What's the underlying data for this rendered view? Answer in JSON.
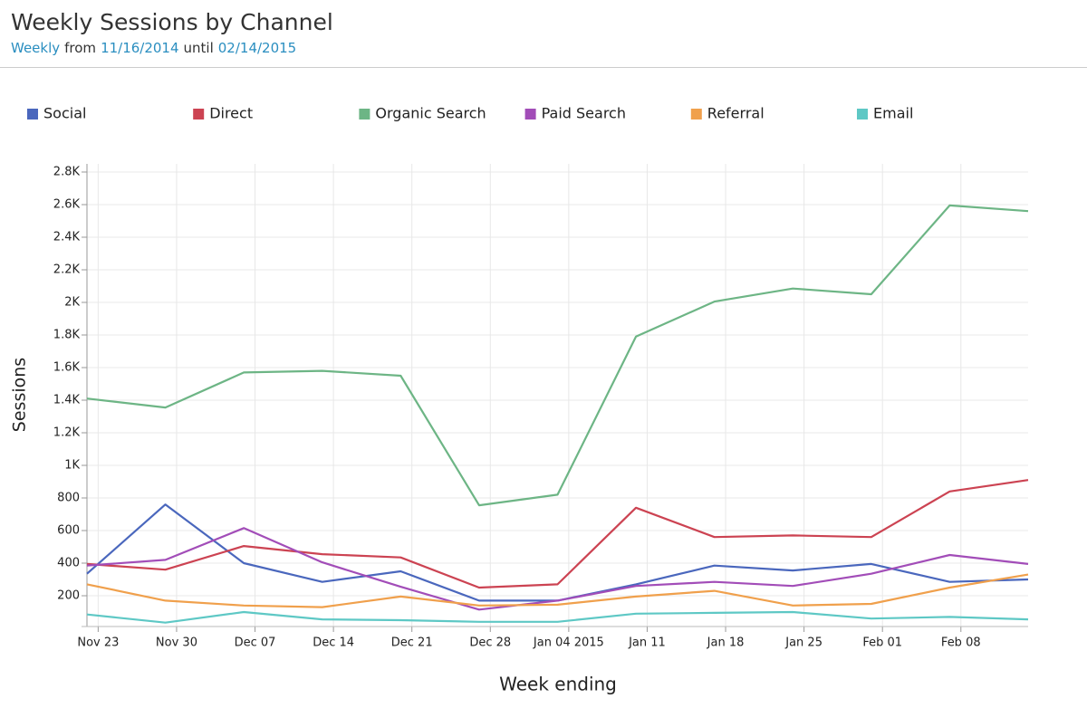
{
  "chart_data": {
    "type": "line",
    "title": "Weekly Sessions by Channel",
    "subtitle": [
      {
        "text": "Weekly",
        "link": true
      },
      {
        "text": "from",
        "link": false
      },
      {
        "text": "11/16/2014",
        "link": true
      },
      {
        "text": "until",
        "link": false
      },
      {
        "text": "02/14/2015",
        "link": true
      }
    ],
    "x_label": "Week ending",
    "y_label": "Sessions",
    "x": [
      "2014-11-22",
      "2014-11-29",
      "2014-12-06",
      "2014-12-13",
      "2014-12-20",
      "2014-12-27",
      "2015-01-03",
      "2015-01-10",
      "2015-01-17",
      "2015-01-24",
      "2015-01-31",
      "2015-02-07",
      "2015-02-14"
    ],
    "xlim": [
      "2014-11-22",
      "2015-02-14"
    ],
    "xticks": [
      {
        "value": "2014-11-23",
        "label": "Nov 23"
      },
      {
        "value": "2014-11-30",
        "label": "Nov 30"
      },
      {
        "value": "2014-12-07",
        "label": "Dec 07"
      },
      {
        "value": "2014-12-14",
        "label": "Dec 14"
      },
      {
        "value": "2014-12-21",
        "label": "Dec 21"
      },
      {
        "value": "2014-12-28",
        "label": "Dec 28"
      },
      {
        "value": "2015-01-04",
        "label": "Jan 04 2015"
      },
      {
        "value": "2015-01-11",
        "label": "Jan 11"
      },
      {
        "value": "2015-01-18",
        "label": "Jan 18"
      },
      {
        "value": "2015-01-25",
        "label": "Jan 25"
      },
      {
        "value": "2015-02-01",
        "label": "Feb 01"
      },
      {
        "value": "2015-02-08",
        "label": "Feb 08"
      }
    ],
    "ylim": [
      0,
      2850
    ],
    "yticks": [
      200,
      400,
      600,
      800,
      {
        "value": 1000,
        "label": "1K"
      },
      {
        "value": 1200,
        "label": "1.2K"
      },
      {
        "value": 1400,
        "label": "1.4K"
      },
      {
        "value": 1600,
        "label": "1.6K"
      },
      {
        "value": 1800,
        "label": "1.8K"
      },
      {
        "value": 2000,
        "label": "2K"
      },
      {
        "value": 2200,
        "label": "2.2K"
      },
      {
        "value": 2400,
        "label": "2.4K"
      },
      {
        "value": 2600,
        "label": "2.6K"
      },
      {
        "value": 2800,
        "label": "2.8K"
      }
    ],
    "grid": true,
    "legend": "top",
    "series": [
      {
        "name": "Social",
        "color": "#4a67bd",
        "values": [
          335,
          760,
          400,
          285,
          350,
          170,
          170,
          270,
          385,
          355,
          395,
          285,
          300
        ]
      },
      {
        "name": "Direct",
        "color": "#cc4352",
        "values": [
          395,
          360,
          505,
          455,
          435,
          250,
          270,
          740,
          560,
          570,
          560,
          840,
          910
        ]
      },
      {
        "name": "Organic Search",
        "color": "#6db585",
        "values": [
          1410,
          1355,
          1570,
          1580,
          1550,
          755,
          820,
          1790,
          2005,
          2085,
          2050,
          2595,
          2560
        ]
      },
      {
        "name": "Paid Search",
        "color": "#a24db8",
        "values": [
          385,
          420,
          615,
          405,
          255,
          115,
          170,
          260,
          285,
          260,
          335,
          450,
          395
        ]
      },
      {
        "name": "Referral",
        "color": "#f0a04c",
        "values": [
          270,
          170,
          140,
          130,
          195,
          140,
          145,
          195,
          230,
          140,
          150,
          250,
          330
        ]
      },
      {
        "name": "Email",
        "color": "#5ec8c5",
        "values": [
          85,
          35,
          100,
          55,
          50,
          40,
          40,
          90,
          95,
          100,
          60,
          70,
          55
        ]
      }
    ]
  }
}
